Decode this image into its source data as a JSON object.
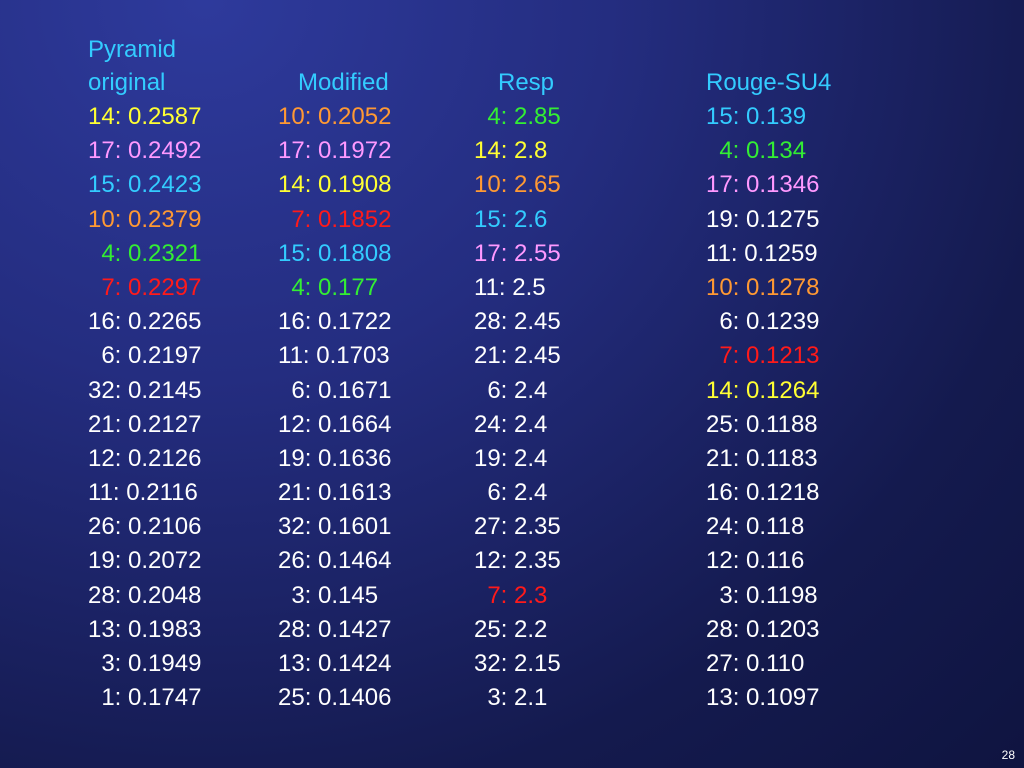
{
  "slide": {
    "title_line": "Pyramid",
    "page_number": "28"
  },
  "colors": {
    "white": "#ffffff",
    "yellow": "#ffff33",
    "pink": "#ff99ff",
    "cyan": "#33ccff",
    "orange": "#ff9933",
    "green": "#33ee33",
    "red": "#ff1a1a"
  },
  "columns": [
    {
      "header": "original",
      "rows": [
        {
          "text": "14: 0.2587",
          "color": "yellow"
        },
        {
          "text": "17: 0.2492",
          "color": "pink"
        },
        {
          "text": "15: 0.2423",
          "color": "cyan"
        },
        {
          "text": "10: 0.2379",
          "color": "orange"
        },
        {
          "text": "  4: 0.2321",
          "color": "green"
        },
        {
          "text": "  7: 0.2297",
          "color": "red"
        },
        {
          "text": "16: 0.2265",
          "color": "white"
        },
        {
          "text": "  6: 0.2197",
          "color": "white"
        },
        {
          "text": "32: 0.2145",
          "color": "white"
        },
        {
          "text": "21: 0.2127",
          "color": "white"
        },
        {
          "text": "12: 0.2126",
          "color": "white"
        },
        {
          "text": "11: 0.2116",
          "color": "white"
        },
        {
          "text": "26: 0.2106",
          "color": "white"
        },
        {
          "text": "19: 0.2072",
          "color": "white"
        },
        {
          "text": "28: 0.2048",
          "color": "white"
        },
        {
          "text": "13: 0.1983",
          "color": "white"
        },
        {
          "text": "  3: 0.1949",
          "color": "white"
        },
        {
          "text": "  1: 0.1747",
          "color": "white"
        }
      ]
    },
    {
      "header": "Modified",
      "rows": [
        {
          "text": "10: 0.2052",
          "color": "orange"
        },
        {
          "text": "17: 0.1972",
          "color": "pink"
        },
        {
          "text": "14: 0.1908",
          "color": "yellow"
        },
        {
          "text": "  7: 0.1852",
          "color": "red"
        },
        {
          "text": "15: 0.1808",
          "color": "cyan"
        },
        {
          "text": "  4: 0.177",
          "color": "green"
        },
        {
          "text": "16: 0.1722",
          "color": "white"
        },
        {
          "text": "11: 0.1703",
          "color": "white"
        },
        {
          "text": "  6: 0.1671",
          "color": "white"
        },
        {
          "text": "12: 0.1664",
          "color": "white"
        },
        {
          "text": "19: 0.1636",
          "color": "white"
        },
        {
          "text": "21: 0.1613",
          "color": "white"
        },
        {
          "text": "32: 0.1601",
          "color": "white"
        },
        {
          "text": "26: 0.1464",
          "color": "white"
        },
        {
          "text": "  3: 0.145",
          "color": "white"
        },
        {
          "text": "28: 0.1427",
          "color": "white"
        },
        {
          "text": "13: 0.1424",
          "color": "white"
        },
        {
          "text": "25: 0.1406",
          "color": "white"
        }
      ]
    },
    {
      "header": "Resp",
      "rows": [
        {
          "text": "  4: 2.85",
          "color": "green"
        },
        {
          "text": "14: 2.8",
          "color": "yellow"
        },
        {
          "text": "10: 2.65",
          "color": "orange"
        },
        {
          "text": "15: 2.6",
          "color": "cyan"
        },
        {
          "text": "17: 2.55",
          "color": "pink"
        },
        {
          "text": "11: 2.5",
          "color": "white"
        },
        {
          "text": "28: 2.45",
          "color": "white"
        },
        {
          "text": "21: 2.45",
          "color": "white"
        },
        {
          "text": "  6: 2.4",
          "color": "white"
        },
        {
          "text": "24: 2.4",
          "color": "white"
        },
        {
          "text": "19: 2.4",
          "color": "white"
        },
        {
          "text": "  6: 2.4",
          "color": "white"
        },
        {
          "text": "27: 2.35",
          "color": "white"
        },
        {
          "text": "12: 2.35",
          "color": "white"
        },
        {
          "text": "  7: 2.3",
          "color": "red"
        },
        {
          "text": "25: 2.2",
          "color": "white"
        },
        {
          "text": "32: 2.15",
          "color": "white"
        },
        {
          "text": "  3: 2.1",
          "color": "white"
        }
      ]
    },
    {
      "header": "Rouge-SU4",
      "rows": [
        {
          "text": "15: 0.139",
          "color": "cyan"
        },
        {
          "text": "  4: 0.134",
          "color": "green"
        },
        {
          "text": "17: 0.1346",
          "color": "pink"
        },
        {
          "text": "19: 0.1275",
          "color": "white"
        },
        {
          "text": "11: 0.1259",
          "color": "white"
        },
        {
          "text": "10: 0.1278",
          "color": "orange"
        },
        {
          "text": "  6: 0.1239",
          "color": "white"
        },
        {
          "text": "  7: 0.1213",
          "color": "red"
        },
        {
          "text": "14: 0.1264",
          "color": "yellow"
        },
        {
          "text": "25: 0.1188",
          "color": "white"
        },
        {
          "text": "21: 0.1183",
          "color": "white"
        },
        {
          "text": "16: 0.1218",
          "color": "white"
        },
        {
          "text": "24: 0.118",
          "color": "white"
        },
        {
          "text": "12: 0.116",
          "color": "white"
        },
        {
          "text": "  3: 0.1198",
          "color": "white"
        },
        {
          "text": "28: 0.1203",
          "color": "white"
        },
        {
          "text": "27: 0.110",
          "color": "white"
        },
        {
          "text": "13: 0.1097",
          "color": "white"
        }
      ]
    }
  ]
}
